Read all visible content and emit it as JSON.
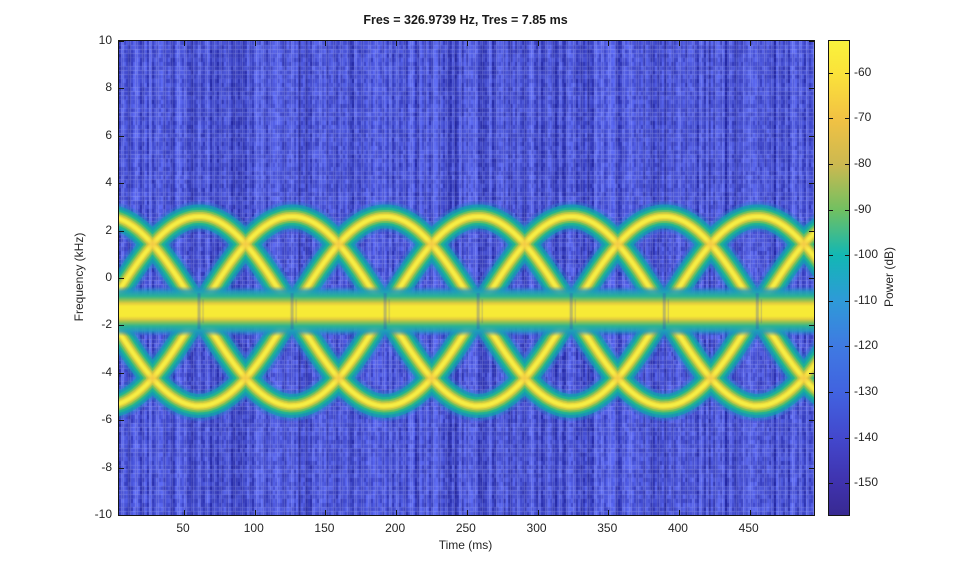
{
  "title": "Fres = 326.9739 Hz, Tres = 7.85 ms",
  "axes": {
    "xlabel": "Time (ms)",
    "ylabel": "Frequency (kHz)",
    "x_ticks": [
      50,
      100,
      150,
      200,
      250,
      300,
      350,
      400,
      450
    ],
    "y_ticks": [
      10,
      8,
      6,
      4,
      2,
      0,
      -2,
      -4,
      -6,
      -8,
      -10
    ]
  },
  "colorbar": {
    "label": "Power (dB)",
    "ticks": [
      -60,
      -70,
      -80,
      -90,
      -100,
      -110,
      -120,
      -130,
      -140,
      -150
    ],
    "clim_db": [
      -157,
      -53
    ],
    "gradient_stops": [
      {
        "p": 0,
        "c": "#f9f23c"
      },
      {
        "p": 6.7,
        "c": "#fbe33a"
      },
      {
        "p": 16.3,
        "c": "#f2c243"
      },
      {
        "p": 26.0,
        "c": "#ccb950"
      },
      {
        "p": 35.6,
        "c": "#71c061"
      },
      {
        "p": 45.2,
        "c": "#12b7b4"
      },
      {
        "p": 54.8,
        "c": "#2e9ad8"
      },
      {
        "p": 64.4,
        "c": "#3f7ae2"
      },
      {
        "p": 74.0,
        "c": "#4163e0"
      },
      {
        "p": 83.7,
        "c": "#4348cd"
      },
      {
        "p": 93.3,
        "c": "#3f32ad"
      },
      {
        "p": 100,
        "c": "#382a92"
      }
    ]
  },
  "chart_data": {
    "type": "heatmap",
    "subtype": "spectrogram",
    "title": "Fres = 326.9739 Hz, Tres = 7.85 ms",
    "xlabel": "Time (ms)",
    "ylabel": "Frequency (kHz)",
    "x_range_ms": [
      4,
      495.5
    ],
    "y_range_khz": [
      -10,
      10
    ],
    "x_ticks": [
      50,
      100,
      150,
      200,
      250,
      300,
      350,
      400,
      450
    ],
    "y_ticks": [
      10,
      8,
      6,
      4,
      2,
      0,
      -2,
      -4,
      -6,
      -8,
      -10
    ],
    "power_label": "Power (dB)",
    "power_ticks_db": [
      -60,
      -70,
      -80,
      -90,
      -100,
      -110,
      -120,
      -130,
      -140,
      -150
    ],
    "clim_db": [
      -157,
      -53
    ],
    "noise_floor_db": -140,
    "grid": false,
    "legend": "colorbar-right",
    "components": {
      "constant_tone": {
        "center_khz": -1.4,
        "core_halfwidth_khz": 0.5,
        "fade_halfwidth_khz": 1.05,
        "peak_db": -55
      },
      "arc_pattern": {
        "center_khz": -1.4,
        "amplitude_khz": 4.0,
        "apex_freq_khz": 2.6,
        "trough_freq_khz": -5.4,
        "period_ms": 65.8,
        "first_apex_ms": -5.2,
        "arch_halfwidth_ms": 65.8,
        "upper_crossing_khz": 1.43,
        "lower_crossing_khz": -4.23,
        "peak_db": -65
      }
    },
    "palette": {
      "noise_dark": "#1f23a0",
      "noise_light": "#5c6af4",
      "halo": "rgba(45,125,205,0.40)",
      "cyan": "rgba(20,158,176,0.85)",
      "teal": "#1fb295",
      "green": "#6cc05f",
      "olive": "#c3c748",
      "yellow": "#eedd3a",
      "core": "#f6ee46",
      "band_core": "#f7ea36",
      "hotspot": "rgba(244,170,70,0.55)",
      "notch": "rgba(50,70,200,0.30)"
    },
    "arc_layer_widths": [
      30,
      24,
      18,
      13,
      9,
      5.5,
      3
    ]
  }
}
